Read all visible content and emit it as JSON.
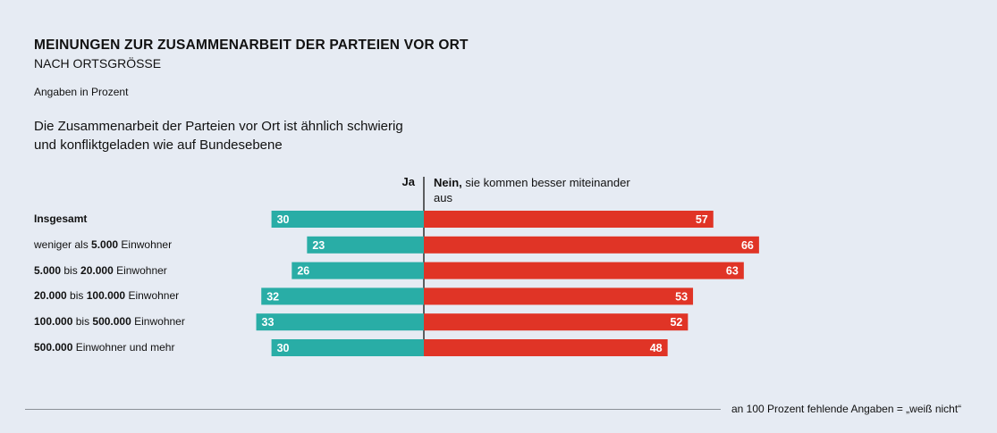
{
  "header": {
    "title": "MEINUNGEN ZUR ZUSAMMENARBEIT DER PARTEIEN VOR ORT",
    "subtitle": "NACH ORTSGRÖSSE",
    "unit": "Angaben in Prozent",
    "question": "Die Zusammenarbeit der Parteien vor Ort ist ähnlich schwierig und konfliktgeladen wie auf Bundesebene"
  },
  "legend": {
    "ja": "Ja",
    "nein_bold": "Nein,",
    "nein_rest": " sie kommen besser miteinander aus"
  },
  "footnote": "an 100 Prozent fehlende Angaben = „weiß nicht“",
  "colors": {
    "ja": "#29ada6",
    "nein": "#e03426",
    "background": "#e6ebf3"
  },
  "chart_data": {
    "type": "bar",
    "orientation": "horizontal-diverging",
    "categories": [
      "Insgesamt",
      "weniger als 5.000 Einwohner",
      "5.000 bis 20.000 Einwohner",
      "20.000 bis 100.000 Einwohner",
      "100.000 bis 500.000 Einwohner",
      "500.000 Einwohner und mehr"
    ],
    "category_parts": [
      [
        [
          "Insgesamt",
          true
        ]
      ],
      [
        [
          "weniger als ",
          false
        ],
        [
          "5.000",
          true
        ],
        [
          " Einwohner",
          false
        ]
      ],
      [
        [
          "5.000",
          true
        ],
        [
          " bis ",
          false
        ],
        [
          "20.000",
          true
        ],
        [
          " Einwohner",
          false
        ]
      ],
      [
        [
          "20.000",
          true
        ],
        [
          " bis ",
          false
        ],
        [
          "100.000",
          true
        ],
        [
          " Einwohner",
          false
        ]
      ],
      [
        [
          "100.000",
          true
        ],
        [
          " bis ",
          false
        ],
        [
          "500.000",
          true
        ],
        [
          " Einwohner",
          false
        ]
      ],
      [
        [
          "500.000",
          true
        ],
        [
          " Einwohner und mehr",
          false
        ]
      ]
    ],
    "series": [
      {
        "name": "Ja",
        "values": [
          30,
          23,
          26,
          32,
          33,
          30
        ]
      },
      {
        "name": "Nein, sie kommen besser miteinander aus",
        "values": [
          57,
          66,
          63,
          53,
          52,
          48
        ]
      }
    ],
    "ylim": [
      0,
      100
    ]
  }
}
